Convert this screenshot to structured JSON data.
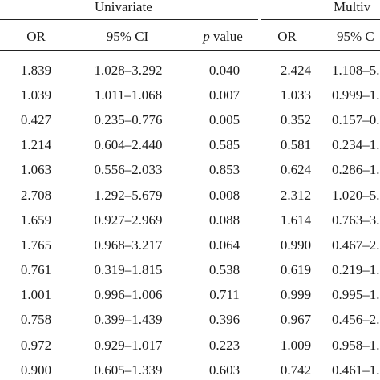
{
  "groups": {
    "univariate": "Univariate",
    "multivariate": "Multiv"
  },
  "headers": {
    "or1": "OR",
    "ci1": "95% CI",
    "p_italic": "p",
    "p_rest": " value",
    "or2": "OR",
    "ci2": "95% C"
  },
  "rows": [
    [
      "1.839",
      "1.028–3.292",
      "0.040",
      "2.424",
      "1.108–5."
    ],
    [
      "1.039",
      "1.011–1.068",
      "0.007",
      "1.033",
      "0.999–1."
    ],
    [
      "0.427",
      "0.235–0.776",
      "0.005",
      "0.352",
      "0.157–0."
    ],
    [
      "1.214",
      "0.604–2.440",
      "0.585",
      "0.581",
      "0.234–1."
    ],
    [
      "1.063",
      "0.556–2.033",
      "0.853",
      "0.624",
      "0.286–1."
    ],
    [
      "2.708",
      "1.292–5.679",
      "0.008",
      "2.312",
      "1.020–5."
    ],
    [
      "1.659",
      "0.927–2.969",
      "0.088",
      "1.614",
      "0.763–3."
    ],
    [
      "1.765",
      "0.968–3.217",
      "0.064",
      "0.990",
      "0.467–2."
    ],
    [
      "0.761",
      "0.319–1.815",
      "0.538",
      "0.619",
      "0.219–1."
    ],
    [
      "1.001",
      "0.996–1.006",
      "0.711",
      "0.999",
      "0.995–1."
    ],
    [
      "0.758",
      "0.399–1.439",
      "0.396",
      "0.967",
      "0.456–2."
    ],
    [
      "0.972",
      "0.929–1.017",
      "0.223",
      "1.009",
      "0.958–1."
    ],
    [
      "0.900",
      "0.605–1.339",
      "0.603",
      "0.742",
      "0.461–1."
    ]
  ]
}
